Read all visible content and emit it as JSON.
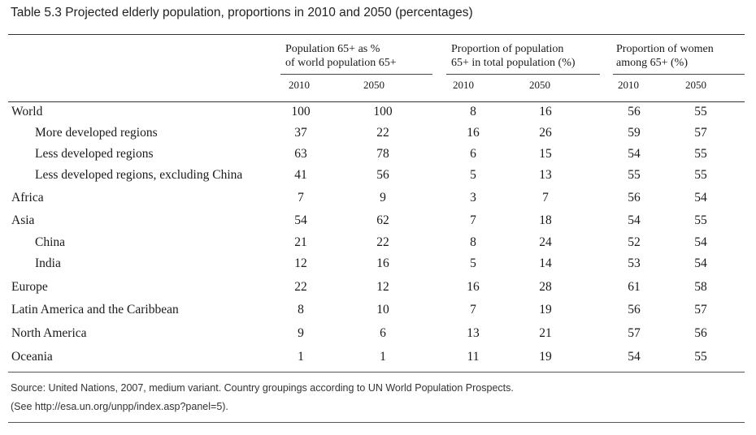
{
  "title": "Table 5.3  Projected elderly population, proportions in 2010 and 2050 (percentages)",
  "groups": [
    {
      "line1": "Population 65+ as %",
      "line2": "of world population 65+"
    },
    {
      "line1": "Proportion of population",
      "line2": "65+ in total population (%)"
    },
    {
      "line1": "Proportion of women",
      "line2": "among 65+ (%)"
    }
  ],
  "years": [
    "2010",
    "2050",
    "2010",
    "2050",
    "2010",
    "2050"
  ],
  "rows": [
    {
      "label": "World",
      "indent": false,
      "values": [
        "100",
        "100",
        "8",
        "16",
        "56",
        "55"
      ]
    },
    {
      "label": "More developed regions",
      "indent": true,
      "values": [
        "37",
        "22",
        "16",
        "26",
        "59",
        "57"
      ]
    },
    {
      "label": "Less developed regions",
      "indent": true,
      "values": [
        "63",
        "78",
        "6",
        "15",
        "54",
        "55"
      ]
    },
    {
      "label": "Less developed regions, excluding China",
      "indent": true,
      "values": [
        "41",
        "56",
        "5",
        "13",
        "55",
        "55"
      ]
    },
    {
      "label": "Africa",
      "indent": false,
      "values": [
        "7",
        "9",
        "3",
        "7",
        "56",
        "54"
      ]
    },
    {
      "label": "Asia",
      "indent": false,
      "values": [
        "54",
        "62",
        "7",
        "18",
        "54",
        "55"
      ]
    },
    {
      "label": "China",
      "indent": true,
      "values": [
        "21",
        "22",
        "8",
        "24",
        "52",
        "54"
      ]
    },
    {
      "label": "India",
      "indent": true,
      "values": [
        "12",
        "16",
        "5",
        "14",
        "53",
        "54"
      ]
    },
    {
      "label": "Europe",
      "indent": false,
      "values": [
        "22",
        "12",
        "16",
        "28",
        "61",
        "58"
      ]
    },
    {
      "label": "Latin America and the Caribbean",
      "indent": false,
      "values": [
        "8",
        "10",
        "7",
        "19",
        "56",
        "57"
      ]
    },
    {
      "label": "North America",
      "indent": false,
      "values": [
        "9",
        "6",
        "13",
        "21",
        "57",
        "56"
      ]
    },
    {
      "label": "Oceania",
      "indent": false,
      "values": [
        "1",
        "1",
        "11",
        "19",
        "54",
        "55"
      ]
    }
  ],
  "source": "Source: United Nations, 2007, medium variant. Country groupings according to UN World Population Prospects.",
  "source_link": "(See http://esa.un.org/unpp/index.asp?panel=5)."
}
